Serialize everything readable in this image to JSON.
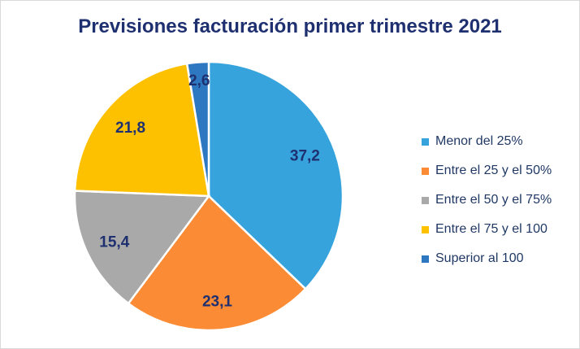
{
  "chart_data": {
    "type": "pie",
    "title": "Previsiones facturación primer trimestre 2021",
    "categories": [
      "Menor del 25%",
      "Entre el 25 y el 50%",
      "Entre el 50 y el 75%",
      "Entre el 75 y el 100",
      "Superior al 100"
    ],
    "values": [
      37.2,
      23.1,
      15.4,
      21.8,
      2.6
    ],
    "data_labels": [
      "37,2",
      "23,1",
      "15,4",
      "21,8",
      "2,6"
    ],
    "colors": [
      "#36a3dc",
      "#fb8c35",
      "#a9a9a9",
      "#fec100",
      "#2e78c2"
    ],
    "legend_position": "right",
    "start_angle": "top, clockwise"
  }
}
